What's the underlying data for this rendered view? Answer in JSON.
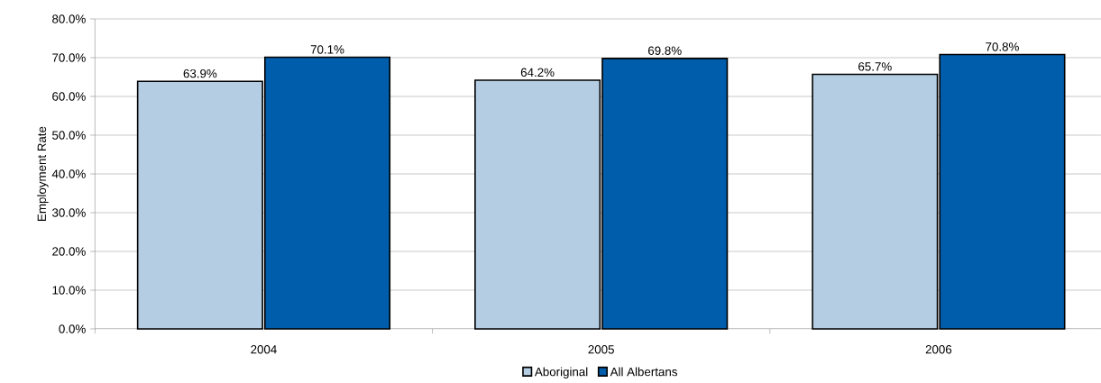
{
  "chart_data": {
    "type": "bar",
    "ylabel": "Employment Rate",
    "categories": [
      "2004",
      "2005",
      "2006"
    ],
    "series": [
      {
        "name": "Aboriginal",
        "color": "#b4cde3",
        "values": [
          63.9,
          64.2,
          65.7
        ],
        "value_labels": [
          "63.9%",
          "64.2%",
          "65.7%"
        ]
      },
      {
        "name": "All Albertans",
        "color": "#005dab",
        "values": [
          70.1,
          69.8,
          70.8
        ],
        "value_labels": [
          "70.1%",
          "69.8%",
          "70.8%"
        ]
      }
    ],
    "ylim": [
      0,
      80
    ],
    "yticks": [
      {
        "value": 0,
        "label": "0.0%"
      },
      {
        "value": 10,
        "label": "10.0%"
      },
      {
        "value": 20,
        "label": "20.0%"
      },
      {
        "value": 30,
        "label": "30.0%"
      },
      {
        "value": 40,
        "label": "40.0%"
      },
      {
        "value": 50,
        "label": "50.0%"
      },
      {
        "value": 60,
        "label": "60.0%"
      },
      {
        "value": 70,
        "label": "70.0%"
      },
      {
        "value": 80,
        "label": "80.0%"
      }
    ],
    "grid": "y",
    "legend": "bottom"
  }
}
